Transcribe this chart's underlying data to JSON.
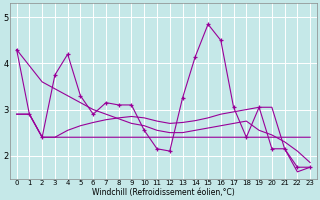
{
  "xlabel": "Windchill (Refroidissement éolien,°C)",
  "xlim": [
    -0.5,
    23.5
  ],
  "ylim": [
    1.5,
    5.3
  ],
  "yticks": [
    2,
    3,
    4,
    5
  ],
  "xticks": [
    0,
    1,
    2,
    3,
    4,
    5,
    6,
    7,
    8,
    9,
    10,
    11,
    12,
    13,
    14,
    15,
    16,
    17,
    18,
    19,
    20,
    21,
    22,
    23
  ],
  "bg_color": "#c5e8e8",
  "line_color": "#990099",
  "grid_color": "#ffffff",
  "s1": [
    4.3,
    2.9,
    2.4,
    3.75,
    4.2,
    3.3,
    2.9,
    3.15,
    3.1,
    3.1,
    2.55,
    2.15,
    2.1,
    3.25,
    4.15,
    4.85,
    4.5,
    3.05,
    2.4,
    3.05,
    2.15,
    2.15,
    1.75,
    1.75
  ],
  "s2": [
    4.3,
    3.95,
    3.6,
    3.45,
    3.3,
    3.15,
    3.0,
    2.9,
    2.8,
    2.7,
    2.65,
    2.55,
    2.5,
    2.5,
    2.55,
    2.6,
    2.65,
    2.7,
    2.75,
    2.55,
    2.45,
    2.3,
    2.1,
    1.85
  ],
  "s3": [
    2.9,
    2.9,
    2.4,
    2.4,
    2.4,
    2.4,
    2.4,
    2.4,
    2.4,
    2.4,
    2.4,
    2.4,
    2.4,
    2.4,
    2.4,
    2.4,
    2.4,
    2.4,
    2.4,
    2.4,
    2.4,
    2.4,
    2.4,
    2.4
  ],
  "s4": [
    2.9,
    2.9,
    2.4,
    2.4,
    2.55,
    2.65,
    2.72,
    2.78,
    2.82,
    2.85,
    2.82,
    2.75,
    2.7,
    2.72,
    2.76,
    2.82,
    2.9,
    2.95,
    3.0,
    3.05,
    3.05,
    2.15,
    1.65,
    1.75
  ]
}
